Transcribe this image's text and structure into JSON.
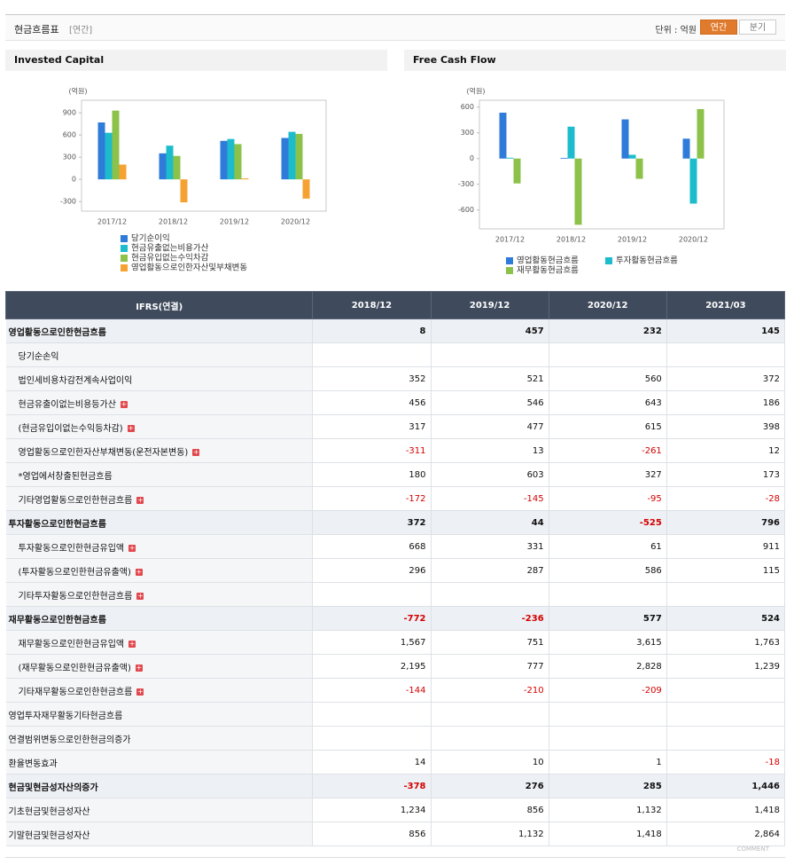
{
  "header": {
    "title": "현금흐름표",
    "subtitle": "[연간]",
    "unit_label": "단위 : 억원",
    "tabs": [
      "연간",
      "분기"
    ]
  },
  "chart_data": [
    {
      "type": "bar",
      "title": "Invested Capital",
      "y_label": "(억원)",
      "categories": [
        "2017/12",
        "2018/12",
        "2019/12",
        "2020/12"
      ],
      "series": [
        {
          "name": "당기순이익",
          "color": "#2f7bd9",
          "values": [
            770,
            352,
            521,
            560
          ]
        },
        {
          "name": "현금유출없는비용가산",
          "color": "#1cbccd",
          "values": [
            630,
            456,
            546,
            643
          ]
        },
        {
          "name": "현금유입없는수익차감",
          "color": "#8cc24a",
          "values": [
            930,
            317,
            477,
            615
          ]
        },
        {
          "name": "영업활동으로인한자산및부채변동",
          "color": "#f6a233",
          "values": [
            200,
            -311,
            13,
            -261
          ]
        }
      ],
      "ylim": [
        -430,
        1070
      ],
      "yticks": [
        -300,
        0,
        300,
        600,
        900
      ],
      "grid": false
    },
    {
      "type": "bar",
      "title": "Free Cash Flow",
      "y_label": "(억원)",
      "categories": [
        "2017/12",
        "2018/12",
        "2019/12",
        "2020/12"
      ],
      "series": [
        {
          "name": "영업활동현금흐름",
          "color": "#2f7bd9",
          "values": [
            535,
            8,
            457,
            232
          ]
        },
        {
          "name": "투자활동현금흐름",
          "color": "#1cbccd",
          "values": [
            10,
            372,
            44,
            -525
          ]
        },
        {
          "name": "재무활동현금흐름",
          "color": "#8cc24a",
          "values": [
            -290,
            -772,
            -236,
            577
          ]
        }
      ],
      "ylim": [
        -820,
        680
      ],
      "yticks": [
        -600,
        -300,
        0,
        300,
        600
      ],
      "grid": false
    }
  ],
  "table": {
    "columns": [
      "IFRS(연결)",
      "2018/12",
      "2019/12",
      "2020/12",
      "2021/03"
    ],
    "rows": [
      {
        "label": "영업활동으로인한현금흐름",
        "bold": true,
        "values": [
          "8",
          "457",
          "232",
          "145"
        ]
      },
      {
        "label": "당기순손익",
        "indent": true,
        "values": [
          null,
          null,
          null,
          null
        ]
      },
      {
        "label": "법인세비용차감전계속사업이익",
        "indent": true,
        "values": [
          "352",
          "521",
          "560",
          "372"
        ]
      },
      {
        "label": "현금유출이없는비용등가산",
        "indent": true,
        "expandable": true,
        "values": [
          "456",
          "546",
          "643",
          "186"
        ]
      },
      {
        "label": "(현금유입이없는수익등차감)",
        "indent": true,
        "expandable": true,
        "values": [
          "317",
          "477",
          "615",
          "398"
        ]
      },
      {
        "label": "영업활동으로인한자산부채변동(운전자본변동)",
        "indent": true,
        "expandable": true,
        "values": [
          "-311",
          "13",
          "-261",
          "12"
        ]
      },
      {
        "label": "*영업에서창출된현금흐름",
        "indent": true,
        "values": [
          "180",
          "603",
          "327",
          "173"
        ]
      },
      {
        "label": "기타영업활동으로인한현금흐름",
        "indent": true,
        "expandable": true,
        "values": [
          "-172",
          "-145",
          "-95",
          "-28"
        ]
      },
      {
        "label": "투자활동으로인한현금흐름",
        "bold": true,
        "values": [
          "372",
          "44",
          "-525",
          "796"
        ]
      },
      {
        "label": "투자활동으로인한현금유입액",
        "indent": true,
        "expandable": true,
        "values": [
          "668",
          "331",
          "61",
          "911"
        ]
      },
      {
        "label": "(투자활동으로인한현금유출액)",
        "indent": true,
        "expandable": true,
        "values": [
          "296",
          "287",
          "586",
          "115"
        ]
      },
      {
        "label": "기타투자활동으로인한현금흐름",
        "indent": true,
        "expandable": true,
        "values": [
          null,
          null,
          null,
          null
        ]
      },
      {
        "label": "재무활동으로인한현금흐름",
        "bold": true,
        "values": [
          "-772",
          "-236",
          "577",
          "524"
        ]
      },
      {
        "label": "재무활동으로인한현금유입액",
        "indent": true,
        "expandable": true,
        "values": [
          "1,567",
          "751",
          "3,615",
          "1,763"
        ]
      },
      {
        "label": "(재무활동으로인한현금유출액)",
        "indent": true,
        "expandable": true,
        "values": [
          "2,195",
          "777",
          "2,828",
          "1,239"
        ]
      },
      {
        "label": "기타재무활동으로인한현금흐름",
        "indent": true,
        "expandable": true,
        "values": [
          "-144",
          "-210",
          "-209",
          null
        ]
      },
      {
        "label": "영업투자재무활동기타현금흐름",
        "values": [
          null,
          null,
          null,
          null
        ]
      },
      {
        "label": "연결범위변동으로인한현금의증가",
        "values": [
          null,
          null,
          null,
          null
        ]
      },
      {
        "label": "환율변동효과",
        "values": [
          "14",
          "10",
          "1",
          "-18"
        ]
      },
      {
        "label": "현금및현금성자산의증가",
        "bold": true,
        "values": [
          "-378",
          "276",
          "285",
          "1,446"
        ]
      },
      {
        "label": "기초현금및현금성자산",
        "values": [
          "1,234",
          "856",
          "1,132",
          "1,418"
        ]
      },
      {
        "label": "기말현금및현금성자산",
        "values": [
          "856",
          "1,132",
          "1,418",
          "2,864"
        ]
      }
    ]
  },
  "footer": {
    "comment": "COMMENT"
  }
}
